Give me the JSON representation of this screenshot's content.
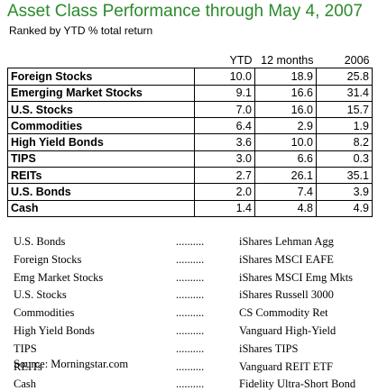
{
  "header": {
    "title": "Asset Class Performance through May 4, 2007",
    "subtitle": "Ranked by YTD % total return"
  },
  "table": {
    "columns": [
      "YTD",
      "12 months",
      "2006"
    ],
    "rows": [
      [
        "Foreign Stocks",
        "10.0",
        "18.9",
        "25.8"
      ],
      [
        "Emerging Market Stocks",
        "9.1",
        "16.6",
        "31.4"
      ],
      [
        "U.S. Stocks",
        "7.0",
        "16.0",
        "15.7"
      ],
      [
        "Commodities",
        "6.4",
        "2.9",
        "1.9"
      ],
      [
        "High Yield Bonds",
        "3.6",
        "10.0",
        "8.2"
      ],
      [
        "TIPS",
        "3.0",
        "6.6",
        "0.3"
      ],
      [
        "REITs",
        "2.7",
        "26.1",
        "35.1"
      ],
      [
        "U.S. Bonds",
        "2.0",
        "7.4",
        "3.9"
      ],
      [
        "Cash",
        "1.4",
        "4.8",
        "4.9"
      ]
    ]
  },
  "funds": {
    "separator": "..........",
    "rows": [
      [
        "U.S. Bonds",
        "iShares Lehman Agg"
      ],
      [
        "Foreign Stocks",
        "iShares MSCI EAFE"
      ],
      [
        "Emg Market Stocks",
        "iShares MSCI Emg Mkts"
      ],
      [
        "U.S. Stocks",
        "iShares Russell 3000"
      ],
      [
        "Commodities",
        "CS Commodity Ret"
      ],
      [
        "High Yield Bonds",
        "Vanguard High-Yield"
      ],
      [
        "TIPS",
        "iShares TIPS"
      ],
      [
        "REITs",
        "Vanguard REIT ETF"
      ],
      [
        "Cash",
        "Fidelity Ultra-Short Bond"
      ]
    ]
  },
  "source": "Source: Morningstar.com"
}
